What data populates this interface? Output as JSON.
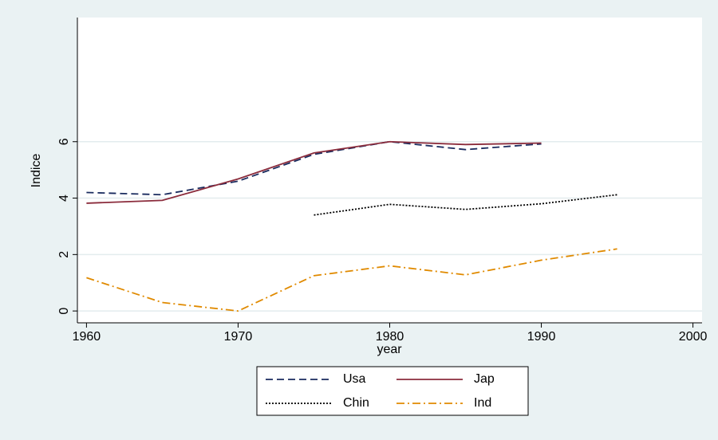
{
  "chart_data": {
    "type": "line",
    "x": [
      1960,
      1965,
      1970,
      1975,
      1980,
      1985,
      1990,
      1995
    ],
    "series": [
      {
        "name": "Usa",
        "color": "#1a2b5e",
        "style": "dash",
        "values": [
          4.2,
          4.12,
          4.6,
          5.55,
          6.0,
          5.72,
          5.92,
          null
        ]
      },
      {
        "name": "Jap",
        "color": "#8b2c3c",
        "style": "solid",
        "values": [
          3.82,
          3.92,
          4.68,
          5.6,
          6.0,
          5.9,
          5.95,
          null
        ]
      },
      {
        "name": "Chin",
        "color": "#000000",
        "style": "dot",
        "values": [
          null,
          null,
          null,
          3.4,
          3.78,
          3.6,
          3.8,
          4.12
        ]
      },
      {
        "name": "Ind",
        "color": "#e08a00",
        "style": "dashdot",
        "values": [
          1.18,
          0.3,
          0.0,
          1.25,
          1.6,
          1.28,
          1.8,
          2.2
        ]
      }
    ],
    "xlabel": "year",
    "ylabel": "Indice",
    "xlim": [
      1959.4,
      2000.6
    ],
    "xticks": [
      1960,
      1970,
      1980,
      1990,
      2000
    ],
    "ylim": [
      -0.42,
      10.4
    ],
    "yticks": [
      0,
      2,
      4,
      6
    ],
    "grid": true,
    "legend": "bottom"
  }
}
